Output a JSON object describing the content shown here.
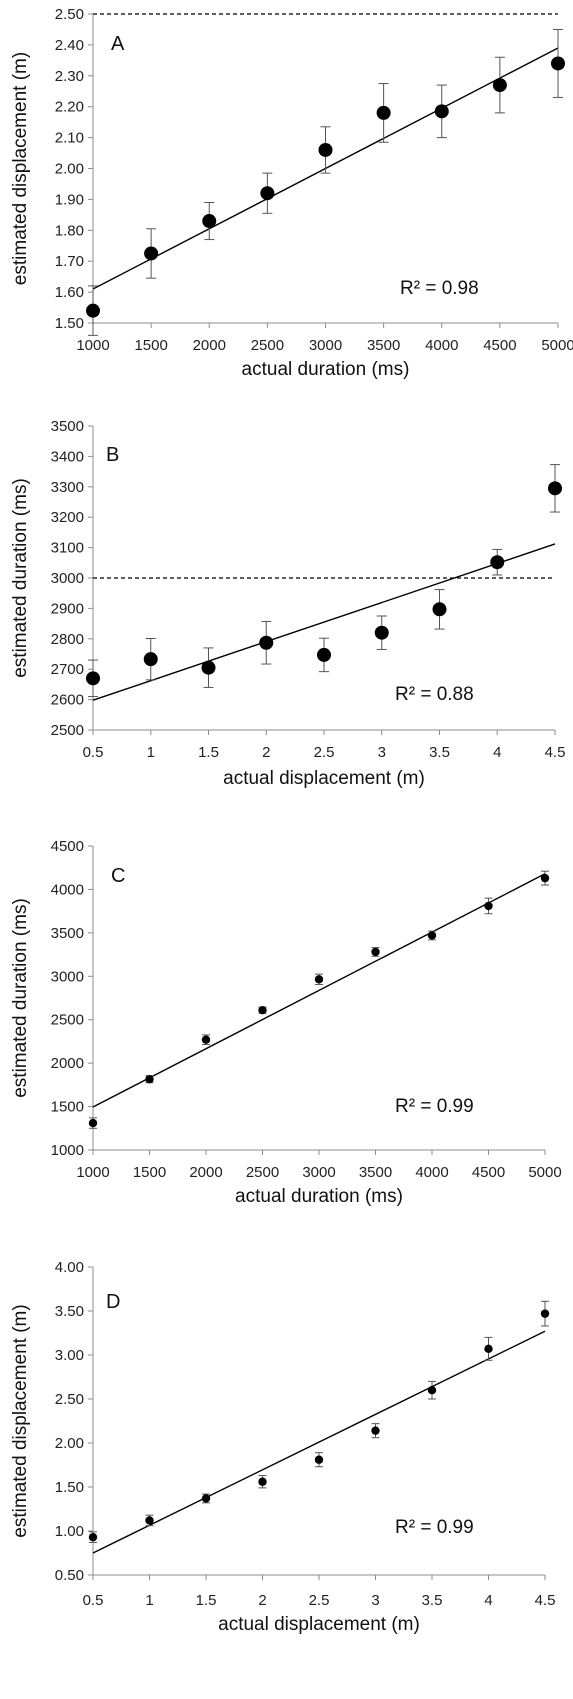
{
  "chart_data": [
    {
      "type": "scatter",
      "panel": "A",
      "xlabel": "actual duration (ms)",
      "ylabel": "estimated displacement (m)",
      "xlim": [
        1000,
        5000
      ],
      "ylim": [
        1.5,
        2.5
      ],
      "x_ticks": [
        "1000",
        "1500",
        "2000",
        "2500",
        "3000",
        "3500",
        "4000",
        "4500",
        "5000"
      ],
      "y_ticks": [
        "1.50",
        "1.60",
        "1.70",
        "1.80",
        "1.90",
        "2.00",
        "2.10",
        "2.20",
        "2.30",
        "2.40",
        "2.50"
      ],
      "x": [
        1000,
        1500,
        2000,
        2500,
        3000,
        3500,
        4000,
        4500,
        5000
      ],
      "y": [
        1.54,
        1.725,
        1.83,
        1.92,
        2.06,
        2.18,
        2.185,
        2.27,
        2.34
      ],
      "error": [
        0.08,
        0.08,
        0.06,
        0.065,
        0.075,
        0.095,
        0.085,
        0.09,
        0.11
      ],
      "trendline": {
        "x": [
          1000,
          5000
        ],
        "y": [
          1.61,
          2.39
        ]
      },
      "reference_line": 2.5,
      "annotation": "R² = 0.98",
      "marker_size": "large",
      "grid": false
    },
    {
      "type": "scatter",
      "panel": "B",
      "xlabel": "actual displacement (m)",
      "ylabel": "estimated duration (ms)",
      "xlim": [
        0.5,
        4.5
      ],
      "ylim": [
        2500,
        3500
      ],
      "x_ticks": [
        "0.5",
        "1",
        "1.5",
        "2",
        "2.5",
        "3",
        "3.5",
        "4",
        "4.5"
      ],
      "y_ticks": [
        "2500",
        "2600",
        "2700",
        "2800",
        "2900",
        "3000",
        "3100",
        "3200",
        "3300",
        "3400",
        "3500"
      ],
      "x": [
        0.5,
        1,
        1.5,
        2,
        2.5,
        3,
        3.5,
        4,
        4.5
      ],
      "y": [
        2670,
        2733,
        2705,
        2787,
        2747,
        2820,
        2897,
        3052,
        3295
      ],
      "error": [
        60,
        68,
        65,
        70,
        55,
        55,
        65,
        42,
        78
      ],
      "trendline": {
        "x": [
          0.5,
          4.5
        ],
        "y": [
          2598,
          3112
        ]
      },
      "reference_line": 3000,
      "annotation": "R² = 0.88",
      "marker_size": "large",
      "grid": false
    },
    {
      "type": "scatter",
      "panel": "C",
      "xlabel": "actual duration (ms)",
      "ylabel": "estimated duration (ms)",
      "xlim": [
        1000,
        5000
      ],
      "ylim": [
        1000,
        4500
      ],
      "x_ticks": [
        "1000",
        "1500",
        "2000",
        "2500",
        "3000",
        "3500",
        "4000",
        "4500",
        "5000"
      ],
      "y_ticks": [
        "1000",
        "1500",
        "2000",
        "2500",
        "3000",
        "3500",
        "4000",
        "4500"
      ],
      "x": [
        1000,
        1500,
        2000,
        2500,
        3000,
        3500,
        4000,
        4500,
        5000
      ],
      "y": [
        1310,
        1815,
        2270,
        2610,
        2965,
        3280,
        3470,
        3810,
        4130
      ],
      "error": [
        60,
        40,
        55,
        35,
        60,
        50,
        50,
        90,
        80
      ],
      "trendline": {
        "x": [
          1000,
          5000
        ],
        "y": [
          1495,
          4180
        ]
      },
      "annotation": "R² = 0.99",
      "marker_size": "small",
      "grid": false
    },
    {
      "type": "scatter",
      "panel": "D",
      "xlabel": "actual displacement (m)",
      "ylabel": "estimated displacement (m)",
      "xlim": [
        0.5,
        4.5
      ],
      "ylim": [
        0.5,
        4.0
      ],
      "x_ticks": [
        "0.5",
        "1",
        "1.5",
        "2",
        "2.5",
        "3",
        "3.5",
        "4",
        "4.5"
      ],
      "y_ticks": [
        "0.50",
        "1.00",
        "1.50",
        "2.00",
        "2.50",
        "3.00",
        "3.50",
        "4.00"
      ],
      "x": [
        0.5,
        1,
        1.5,
        2,
        2.5,
        3,
        3.5,
        4,
        4.5
      ],
      "y": [
        0.93,
        1.12,
        1.37,
        1.56,
        1.81,
        2.14,
        2.6,
        3.07,
        3.47
      ],
      "error": [
        0.06,
        0.06,
        0.05,
        0.07,
        0.08,
        0.08,
        0.1,
        0.13,
        0.14
      ],
      "trendline": {
        "x": [
          0.5,
          4.5
        ],
        "y": [
          0.75,
          3.27
        ]
      },
      "annotation": "R² = 0.99",
      "marker_size": "small",
      "grid": false
    }
  ],
  "colors": {
    "marker": "#000000",
    "trendline": "#000000",
    "axis": "#8c8c8c",
    "text": "#111111"
  }
}
